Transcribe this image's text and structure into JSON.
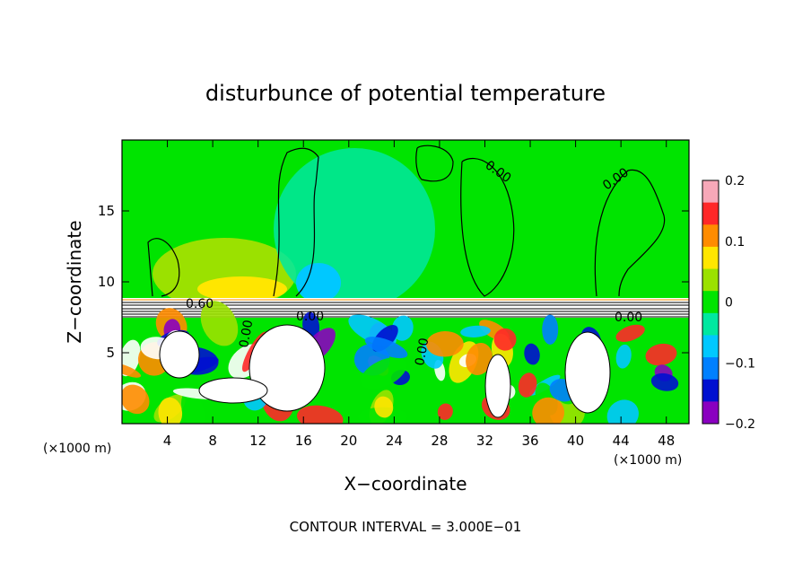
{
  "chart_data": {
    "type": "heatmap",
    "title": "disturbunce of potential temperature",
    "xlabel": "X−coordinate",
    "ylabel": "Z−coordinate",
    "x_unit": "(×1000 m)",
    "z_unit": "(×1000 m)",
    "xlim": [
      0,
      50
    ],
    "ylim": [
      0,
      20
    ],
    "x_ticks": [
      "4",
      "8",
      "12",
      "16",
      "20",
      "24",
      "28",
      "32",
      "36",
      "40",
      "44",
      "48"
    ],
    "y_ticks": [
      "5",
      "10",
      "15"
    ],
    "colorbar": {
      "range": [
        -0.2,
        0.2
      ],
      "tick_labels": [
        "0.2",
        "0.1",
        "0",
        "−0.1",
        "−0.2"
      ],
      "colors": [
        "#f7a8b8",
        "#ff2828",
        "#ff8c00",
        "#ffe600",
        "#9be100",
        "#00e400",
        "#00e8a0",
        "#00c8ff",
        "#0080ff",
        "#0010d0",
        "#8a00c0"
      ]
    },
    "contour_labels": [
      "0.60",
      "0.00",
      "0.00",
      "0.00",
      "0.00",
      "0.00",
      "0.00"
    ],
    "footnote": "CONTOUR INTERVAL = 3.000E−01"
  }
}
